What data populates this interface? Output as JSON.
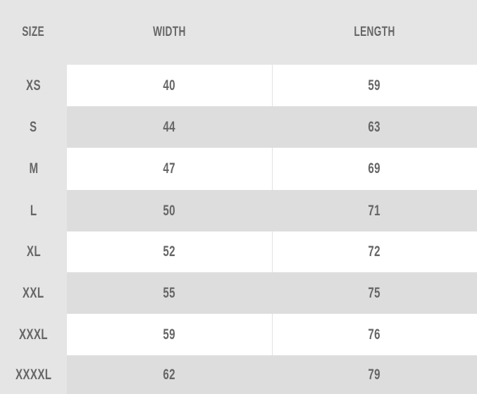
{
  "headers": [
    "SIZE",
    "WIDTH",
    "LENGTH"
  ],
  "rows": [
    {
      "size": "XS",
      "width": "40",
      "length": "59"
    },
    {
      "size": "S",
      "width": "44",
      "length": "63"
    },
    {
      "size": "M",
      "width": "47",
      "length": "69"
    },
    {
      "size": "L",
      "width": "50",
      "length": "71"
    },
    {
      "size": "XL",
      "width": "52",
      "length": "72"
    },
    {
      "size": "XXL",
      "width": "55",
      "length": "75"
    },
    {
      "size": "XXXL",
      "width": "59",
      "length": "76"
    },
    {
      "size": "XXXXL",
      "width": "62",
      "length": "79"
    }
  ],
  "colors": {
    "background": "#e5e5e5",
    "row_light": "#ffffff",
    "row_dark": "#dddddd",
    "text": "#666666"
  }
}
